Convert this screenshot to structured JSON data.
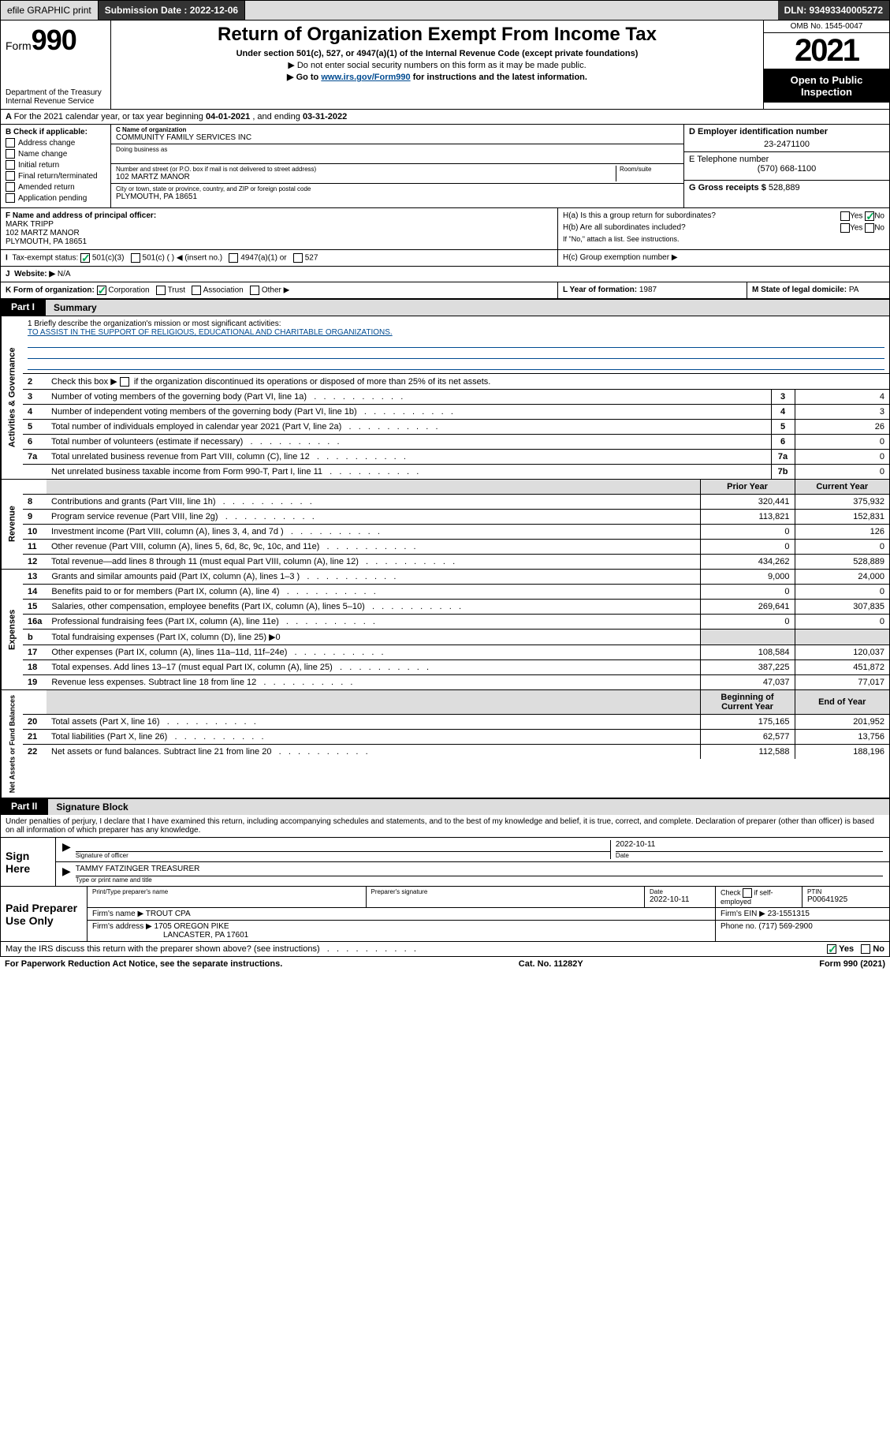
{
  "topbar": {
    "efile_label": "efile GRAPHIC print",
    "submission_label": "Submission Date : 2022-12-06",
    "dln_label": "DLN: 93493340005272"
  },
  "header": {
    "form_word": "Form",
    "form_num": "990",
    "dept": "Department of the Treasury",
    "irs": "Internal Revenue Service",
    "title": "Return of Organization Exempt From Income Tax",
    "sub1": "Under section 501(c), 527, or 4947(a)(1) of the Internal Revenue Code (except private foundations)",
    "sub2": "▶ Do not enter social security numbers on this form as it may be made public.",
    "sub3_pre": "▶ Go to ",
    "sub3_link": "www.irs.gov/Form990",
    "sub3_post": " for instructions and the latest information.",
    "omb": "OMB No. 1545-0047",
    "year": "2021",
    "open": "Open to Public Inspection"
  },
  "rowA": {
    "text_pre": "For the 2021 calendar year, or tax year beginning ",
    "begin": "04-01-2021",
    "mid": " , and ending ",
    "end": "03-31-2022"
  },
  "B": {
    "label": "B Check if applicable:",
    "opts": [
      "Address change",
      "Name change",
      "Initial return",
      "Final return/terminated",
      "Amended return",
      "Application pending"
    ]
  },
  "C": {
    "name_lbl": "C Name of organization",
    "name": "COMMUNITY FAMILY SERVICES INC",
    "dba_lbl": "Doing business as",
    "addr_lbl": "Number and street (or P.O. box if mail is not delivered to street address)",
    "room_lbl": "Room/suite",
    "addr": "102 MARTZ MANOR",
    "city_lbl": "City or town, state or province, country, and ZIP or foreign postal code",
    "city": "PLYMOUTH, PA  18651"
  },
  "D": {
    "lbl": "D Employer identification number",
    "val": "23-2471100"
  },
  "E": {
    "lbl": "E Telephone number",
    "val": "(570) 668-1100"
  },
  "G": {
    "lbl": "G Gross receipts $",
    "val": "528,889"
  },
  "F": {
    "lbl": "F Name and address of principal officer:",
    "name": "MARK TRIPP",
    "addr1": "102 MARTZ MANOR",
    "addr2": "PLYMOUTH, PA  18651"
  },
  "H": {
    "a": "H(a)  Is this a group return for subordinates?",
    "b": "H(b)  Are all subordinates included?",
    "bnote": "If \"No,\" attach a list. See instructions.",
    "c": "H(c)  Group exemption number ▶",
    "yes": "Yes",
    "no": "No"
  },
  "I": {
    "lbl": "Tax-exempt status:",
    "o1": "501(c)(3)",
    "o2": "501(c) (  ) ◀ (insert no.)",
    "o3": "4947(a)(1) or",
    "o4": "527"
  },
  "J": {
    "lbl": "Website: ▶",
    "val": "N/A"
  },
  "K": {
    "lbl": "K Form of organization:",
    "o1": "Corporation",
    "o2": "Trust",
    "o3": "Association",
    "o4": "Other ▶"
  },
  "L": {
    "lbl": "L Year of formation:",
    "val": "1987"
  },
  "M": {
    "lbl": "M State of legal domicile:",
    "val": "PA"
  },
  "part1": {
    "tab": "Part I",
    "title": "Summary"
  },
  "mission": {
    "q": "1  Briefly describe the organization's mission or most significant activities:",
    "text": "TO ASSIST IN THE SUPPORT OF RELIGIOUS, EDUCATIONAL AND CHARITABLE ORGANIZATIONS."
  },
  "gov": {
    "side": "Activities & Governance",
    "l2": "Check this box ▶        if the organization discontinued its operations or disposed of more than 25% of its net assets.",
    "rows": [
      {
        "n": "3",
        "t": "Number of voting members of the governing body (Part VI, line 1a)",
        "k": "3",
        "v": "4"
      },
      {
        "n": "4",
        "t": "Number of independent voting members of the governing body (Part VI, line 1b)",
        "k": "4",
        "v": "3"
      },
      {
        "n": "5",
        "t": "Total number of individuals employed in calendar year 2021 (Part V, line 2a)",
        "k": "5",
        "v": "26"
      },
      {
        "n": "6",
        "t": "Total number of volunteers (estimate if necessary)",
        "k": "6",
        "v": "0"
      },
      {
        "n": "7a",
        "t": "Total unrelated business revenue from Part VIII, column (C), line 12",
        "k": "7a",
        "v": "0"
      },
      {
        "n": "",
        "t": "Net unrelated business taxable income from Form 990-T, Part I, line 11",
        "k": "7b",
        "v": "0"
      }
    ]
  },
  "colhdr": {
    "prior": "Prior Year",
    "current": "Current Year",
    "begin": "Beginning of Current Year",
    "end": "End of Year"
  },
  "rev": {
    "side": "Revenue",
    "rows": [
      {
        "n": "8",
        "t": "Contributions and grants (Part VIII, line 1h)",
        "p": "320,441",
        "c": "375,932"
      },
      {
        "n": "9",
        "t": "Program service revenue (Part VIII, line 2g)",
        "p": "113,821",
        "c": "152,831"
      },
      {
        "n": "10",
        "t": "Investment income (Part VIII, column (A), lines 3, 4, and 7d )",
        "p": "0",
        "c": "126"
      },
      {
        "n": "11",
        "t": "Other revenue (Part VIII, column (A), lines 5, 6d, 8c, 9c, 10c, and 11e)",
        "p": "0",
        "c": "0"
      },
      {
        "n": "12",
        "t": "Total revenue—add lines 8 through 11 (must equal Part VIII, column (A), line 12)",
        "p": "434,262",
        "c": "528,889"
      }
    ]
  },
  "exp": {
    "side": "Expenses",
    "rows": [
      {
        "n": "13",
        "t": "Grants and similar amounts paid (Part IX, column (A), lines 1–3 )",
        "p": "9,000",
        "c": "24,000"
      },
      {
        "n": "14",
        "t": "Benefits paid to or for members (Part IX, column (A), line 4)",
        "p": "0",
        "c": "0"
      },
      {
        "n": "15",
        "t": "Salaries, other compensation, employee benefits (Part IX, column (A), lines 5–10)",
        "p": "269,641",
        "c": "307,835"
      },
      {
        "n": "16a",
        "t": "Professional fundraising fees (Part IX, column (A), line 11e)",
        "p": "0",
        "c": "0"
      },
      {
        "n": "b",
        "t": "Total fundraising expenses (Part IX, column (D), line 25) ▶0",
        "p": "",
        "c": "",
        "grey": true
      },
      {
        "n": "17",
        "t": "Other expenses (Part IX, column (A), lines 11a–11d, 11f–24e)",
        "p": "108,584",
        "c": "120,037"
      },
      {
        "n": "18",
        "t": "Total expenses. Add lines 13–17 (must equal Part IX, column (A), line 25)",
        "p": "387,225",
        "c": "451,872"
      },
      {
        "n": "19",
        "t": "Revenue less expenses. Subtract line 18 from line 12",
        "p": "47,037",
        "c": "77,017"
      }
    ]
  },
  "net": {
    "side": "Net Assets or Fund Balances",
    "rows": [
      {
        "n": "20",
        "t": "Total assets (Part X, line 16)",
        "p": "175,165",
        "c": "201,952"
      },
      {
        "n": "21",
        "t": "Total liabilities (Part X, line 26)",
        "p": "62,577",
        "c": "13,756"
      },
      {
        "n": "22",
        "t": "Net assets or fund balances. Subtract line 21 from line 20",
        "p": "112,588",
        "c": "188,196"
      }
    ]
  },
  "part2": {
    "tab": "Part II",
    "title": "Signature Block"
  },
  "decl": "Under penalties of perjury, I declare that I have examined this return, including accompanying schedules and statements, and to the best of my knowledge and belief, it is true, correct, and complete. Declaration of preparer (other than officer) is based on all information of which preparer has any knowledge.",
  "sign": {
    "lab": "Sign Here",
    "date": "2022-10-11",
    "sig_lbl": "Signature of officer",
    "date_lbl": "Date",
    "name": "TAMMY FATZINGER  TREASURER",
    "name_lbl": "Type or print name and title"
  },
  "paid": {
    "lab": "Paid Preparer Use Only",
    "h1": "Print/Type preparer's name",
    "h2": "Preparer's signature",
    "h3": "Date",
    "h3v": "2022-10-11",
    "h4": "Check        if self-employed",
    "h5": "PTIN",
    "h5v": "P00641925",
    "firm_lbl": "Firm's name    ▶",
    "firm": "TROUT CPA",
    "ein_lbl": "Firm's EIN ▶",
    "ein": "23-1551315",
    "addr_lbl": "Firm's address ▶",
    "addr1": "1705 OREGON PIKE",
    "addr2": "LANCASTER, PA  17601",
    "phone_lbl": "Phone no.",
    "phone": "(717) 569-2900"
  },
  "discuss": {
    "q": "May the IRS discuss this return with the preparer shown above? (see instructions)",
    "yes": "Yes",
    "no": "No"
  },
  "footer": {
    "l": "For Paperwork Reduction Act Notice, see the separate instructions.",
    "m": "Cat. No. 11282Y",
    "r": "Form 990 (2021)"
  }
}
